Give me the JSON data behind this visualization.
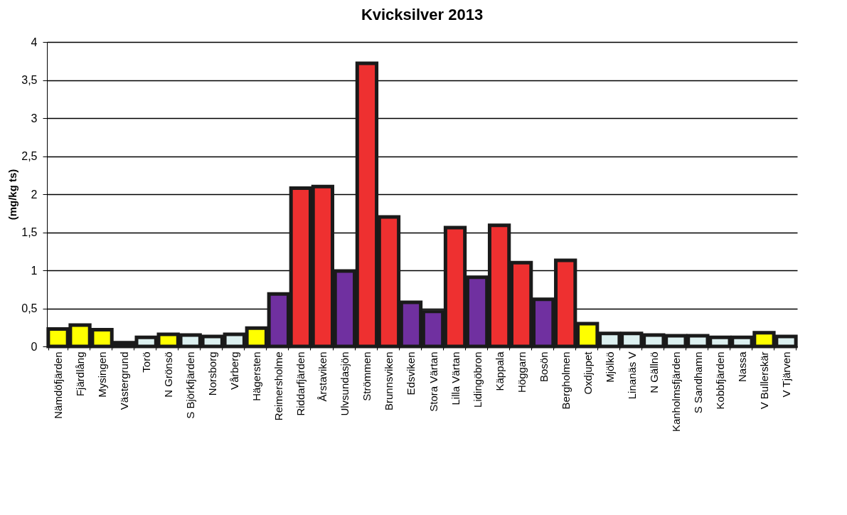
{
  "chart_data": {
    "type": "bar",
    "title": "Kvicksilver 2013",
    "ylabel": "(mg/kg ts)",
    "categories": [
      "Nämdöfjärden",
      "Fjärdlång",
      "Mysingen",
      "Västergrund",
      "Torö",
      "N Grönsö",
      "S Björkfjärden",
      "Norsborg",
      "Vårberg",
      "Hägersten",
      "Reimersholme",
      "Riddarfjärden",
      "Årstaviken",
      "Ulvsundasjön",
      "Strömmen",
      "Brunnsviken",
      "Edsviken",
      "Stora Värtan",
      "Lilla Värtan",
      "Lidingöbron",
      "Käppala",
      "Höggarn",
      "Bosön",
      "Bergholmen",
      "Oxdjupet",
      "Mjölkö",
      "Linanäs V",
      "N Gällnö",
      "Kanholmsfjärden",
      "S Sandhamn",
      "Kobbfjärden",
      "Nassa",
      "V Bullerskär",
      "V Tjärven"
    ],
    "values": [
      0.23,
      0.28,
      0.22,
      0.05,
      0.12,
      0.16,
      0.15,
      0.13,
      0.16,
      0.24,
      0.69,
      2.08,
      2.1,
      0.99,
      3.72,
      1.7,
      0.58,
      0.46,
      1.56,
      0.91,
      1.59,
      1.1,
      0.62,
      1.13,
      0.3,
      0.17,
      0.17,
      0.15,
      0.14,
      0.14,
      0.12,
      0.12,
      0.18,
      0.13
    ],
    "colors": [
      "#ffff00",
      "#ffff00",
      "#ffff00",
      "#1a1a1a",
      "#dcf0f0",
      "#ffff00",
      "#dcf0f0",
      "#dcf0f0",
      "#dcf0f0",
      "#ffff00",
      "#7030a0",
      "#ee3030",
      "#ee3030",
      "#7030a0",
      "#ee3030",
      "#ee3030",
      "#7030a0",
      "#7030a0",
      "#ee3030",
      "#7030a0",
      "#ee3030",
      "#ee3030",
      "#7030a0",
      "#ee3030",
      "#ffff00",
      "#dcf0f0",
      "#dcf0f0",
      "#dcf0f0",
      "#dcf0f0",
      "#dcf0f0",
      "#dcf0f0",
      "#dcf0f0",
      "#ffff00",
      "#dcf0f0"
    ],
    "ylim": [
      0,
      4
    ],
    "yticks": [
      0,
      {
        "value": 0.5,
        "label": "0,5"
      },
      1,
      {
        "value": 1.5,
        "label": "1,5"
      },
      2,
      {
        "value": 2.5,
        "label": "2,5"
      },
      3,
      {
        "value": 3.5,
        "label": "3,5"
      },
      4
    ],
    "grid": "y"
  }
}
